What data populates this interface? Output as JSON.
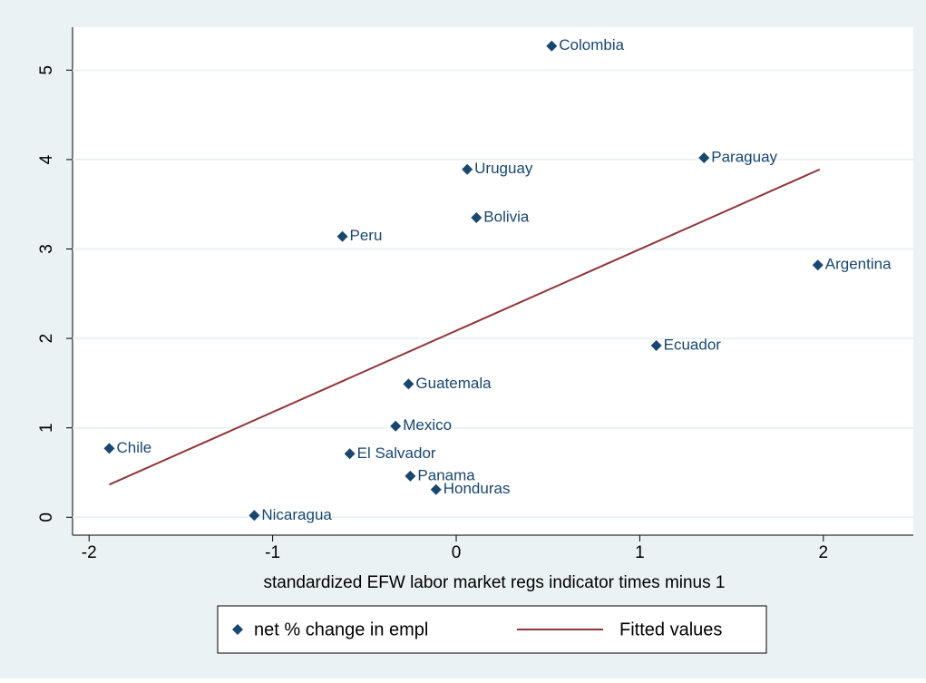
{
  "chart_data": {
    "type": "scatter",
    "xlabel": "standardized EFW labor market regs indicator times minus 1",
    "xlim": [
      -2.09,
      2.49
    ],
    "ylim": [
      -0.2,
      5.48
    ],
    "xticks": [
      -2,
      -1,
      0,
      1,
      2
    ],
    "yticks": [
      0,
      1,
      2,
      3,
      4,
      5
    ],
    "grid": true,
    "series": [
      {
        "name": "net % change in empl",
        "type": "scatter",
        "color": "#1a476f",
        "labels": [
          "Colombia",
          "Paraguay",
          "Uruguay",
          "Bolivia",
          "Peru",
          "Argentina",
          "Ecuador",
          "Guatemala",
          "Mexico",
          "Chile",
          "El Salvador",
          "Panama",
          "Honduras",
          "Nicaragua"
        ],
        "x": [
          0.52,
          1.35,
          0.06,
          0.11,
          -0.62,
          1.97,
          1.09,
          -0.26,
          -0.33,
          -1.89,
          -0.58,
          -0.25,
          -0.11,
          -1.1
        ],
        "values": [
          5.27,
          4.02,
          3.89,
          3.35,
          3.14,
          2.82,
          1.92,
          1.49,
          1.02,
          0.77,
          0.71,
          0.46,
          0.31,
          0.02
        ]
      },
      {
        "name": "Fitted values",
        "type": "line",
        "color": "#90353b",
        "x": [
          -1.89,
          1.98
        ],
        "values": [
          0.365,
          3.89
        ]
      }
    ]
  }
}
